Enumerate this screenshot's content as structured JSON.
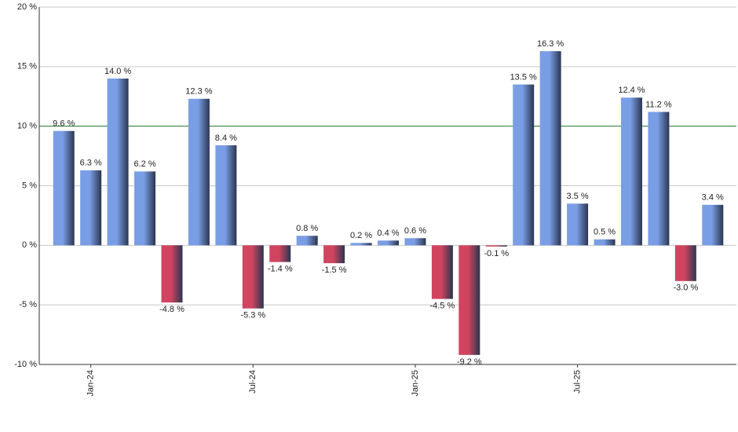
{
  "chart_data": {
    "type": "bar",
    "categories": [
      null,
      "Jan-24",
      null,
      null,
      null,
      null,
      null,
      "Jul-24",
      null,
      null,
      null,
      null,
      null,
      "Jan-25",
      null,
      null,
      null,
      null,
      null,
      "Jul-25",
      null,
      null,
      null,
      null,
      null
    ],
    "values": [
      9.6,
      6.3,
      14.0,
      6.2,
      -4.8,
      12.3,
      8.4,
      -5.3,
      -1.4,
      0.8,
      -1.5,
      0.2,
      0.4,
      0.6,
      -4.5,
      -9.2,
      -0.1,
      13.5,
      16.3,
      3.5,
      0.5,
      12.4,
      11.2,
      -3.0,
      3.4
    ],
    "value_labels": [
      "9.6 %",
      "6.3 %",
      "14.0 %",
      "6.2 %",
      "-4.8 %",
      "12.3 %",
      "8.4 %",
      "-5.3 %",
      "-1.4 %",
      "0.8 %",
      "-1.5 %",
      "0.2 %",
      "0.4 %",
      "0.6 %",
      "-4.5 %",
      "-9.2 %",
      "-0.1 %",
      "13.5 %",
      "16.3 %",
      "3.5 %",
      "0.5 %",
      "12.4 %",
      "11.2 %",
      "-3.0 %",
      "3.4 %"
    ],
    "positive_color": "#7a9ee6",
    "negative_color": "#d0445f",
    "reference_line": 10,
    "reference_color": "#2e7d32",
    "ylim": [
      -10,
      20
    ],
    "yticks": [
      {
        "value": -10,
        "label": "-10 %"
      },
      {
        "value": -5,
        "label": "-5 %"
      },
      {
        "value": 0,
        "label": "0 %"
      },
      {
        "value": 5,
        "label": "5 %"
      },
      {
        "value": 10,
        "label": "10 %"
      },
      {
        "value": 15,
        "label": "15 %"
      },
      {
        "value": 20,
        "label": "20 %"
      }
    ],
    "grid": true
  }
}
